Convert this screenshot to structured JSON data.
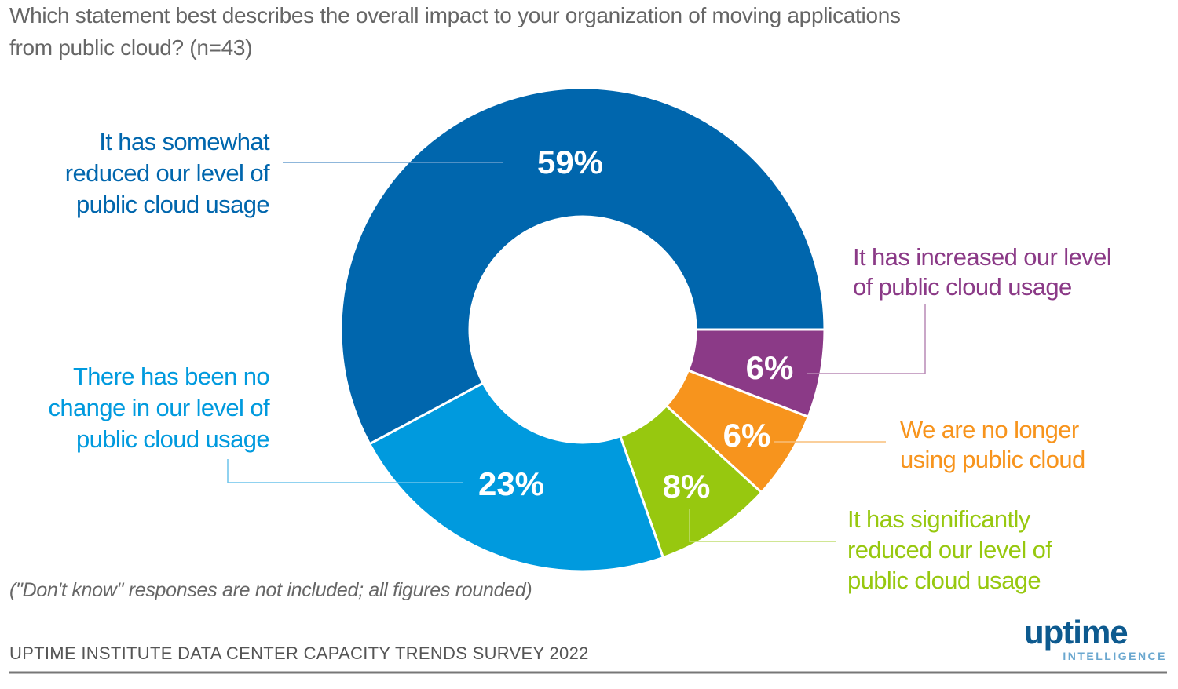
{
  "title_lines": [
    "Which statement best describes the overall impact to your organization of moving applications",
    "from public cloud? (n=43)"
  ],
  "note": "(\"Don't know\" responses are not included; all figures rounded)",
  "source": "UPTIME INSTITUTE DATA CENTER CAPACITY TRENDS SURVEY 2022",
  "logo": {
    "word": "uptime",
    "sub": "INTELLIGENCE"
  },
  "chart_data": {
    "type": "pie",
    "donut": true,
    "title": "Which statement best describes the overall impact to your organization of moving applications from public cloud? (n=43)",
    "unit": "%",
    "categories": [
      "It has increased our level of public cloud usage",
      "We are no longer using public cloud",
      "It has significantly reduced our level of public cloud usage",
      "There has been no change in our level of public cloud usage",
      "It has somewhat reduced our level of public cloud usage"
    ],
    "values": [
      6,
      6,
      8,
      23,
      59
    ],
    "value_labels": [
      "6%",
      "6%",
      "8%",
      "23%",
      "59%"
    ],
    "colors": [
      "#8B3A87",
      "#F7941D",
      "#97C80F",
      "#009ADE",
      "#0066AD"
    ],
    "label_lines": [
      [
        "It has increased our level",
        "of public cloud usage"
      ],
      [
        "We are no longer",
        "using public cloud"
      ],
      [
        "It has significantly",
        "reduced our level of",
        "public cloud usage"
      ],
      [
        "There has been no",
        "change in our level of",
        "public cloud usage"
      ],
      [
        "It has somewhat",
        "reduced our level of",
        "public cloud usage"
      ]
    ]
  }
}
